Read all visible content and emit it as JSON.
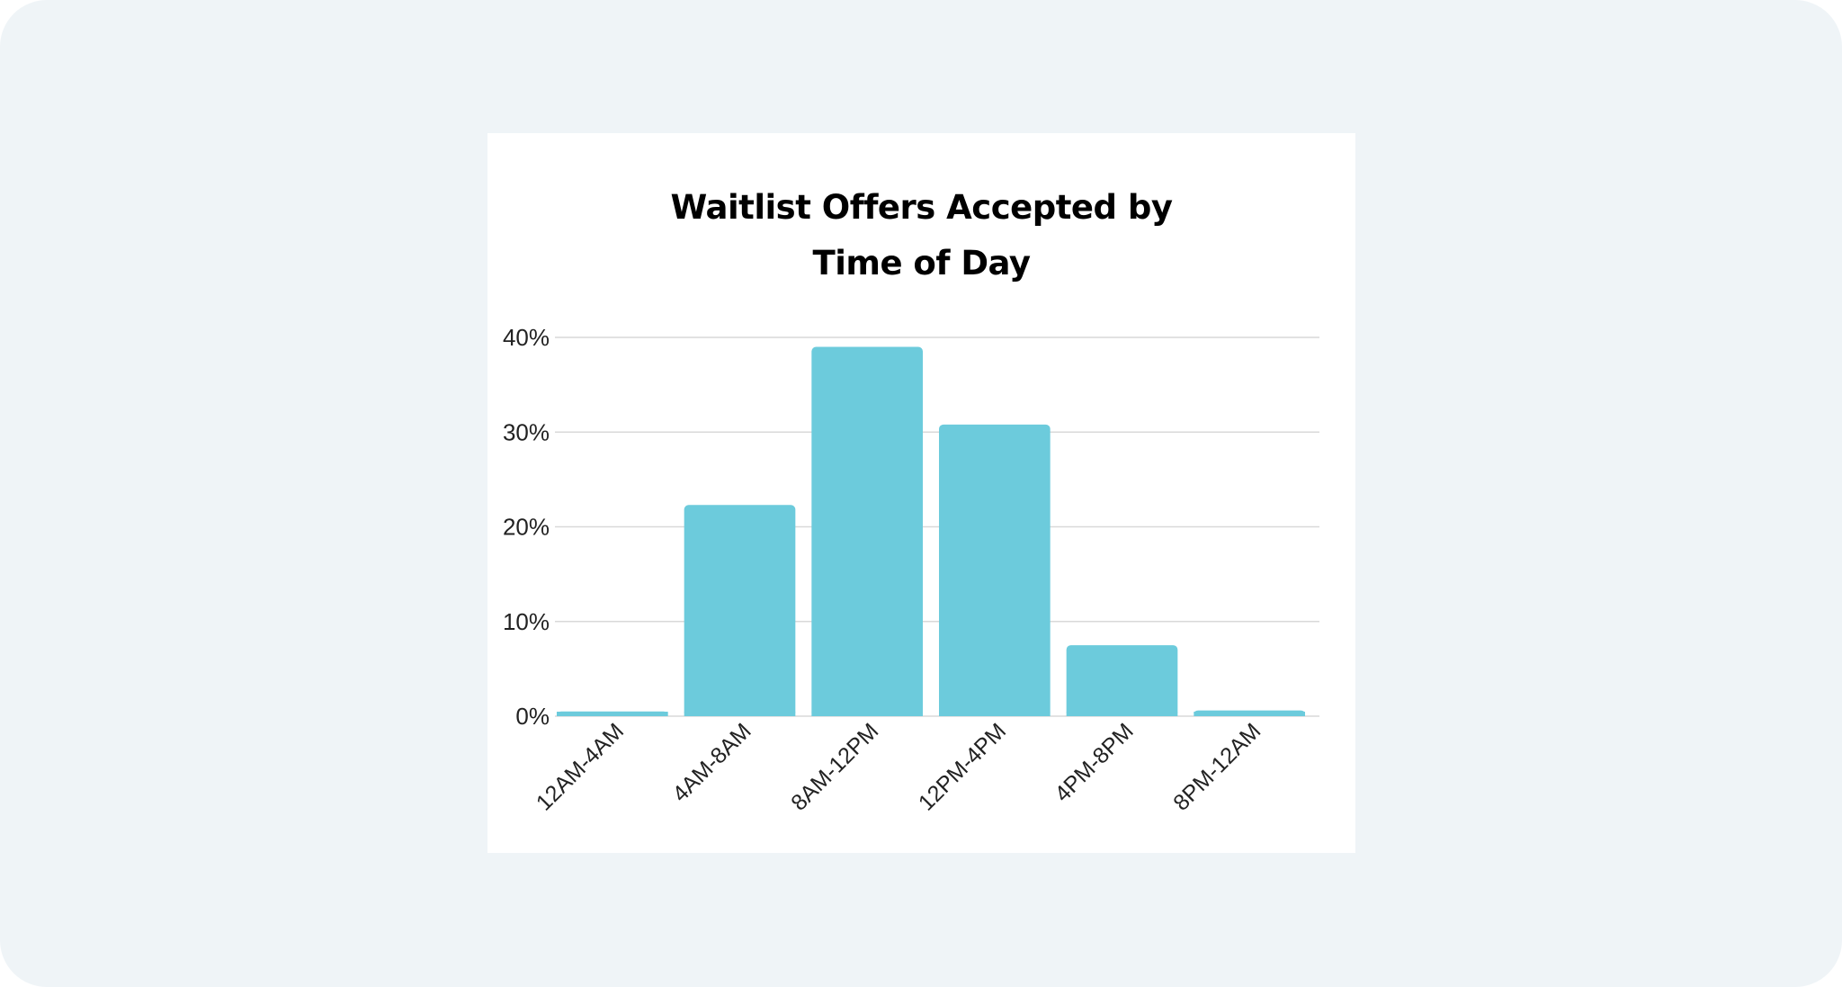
{
  "chart_data": {
    "type": "bar",
    "title_lines": [
      "Waitlist Offers Accepted by",
      "Time of Day"
    ],
    "categories": [
      "12AM-4AM",
      "4AM-8AM",
      "8AM-12PM",
      "12PM-4PM",
      "4PM-8PM",
      "8PM-12AM"
    ],
    "values": [
      0.5,
      22.3,
      39,
      30.8,
      7.5,
      0.6
    ],
    "ylim": [
      0,
      40
    ],
    "yticks": [
      "0%",
      "10%",
      "20%",
      "30%",
      "40%"
    ],
    "ytick_values": [
      0,
      10,
      20,
      30,
      40
    ],
    "grid": true,
    "bar_color": "#6ccbdc",
    "grid_color": "#d9d9d9"
  }
}
